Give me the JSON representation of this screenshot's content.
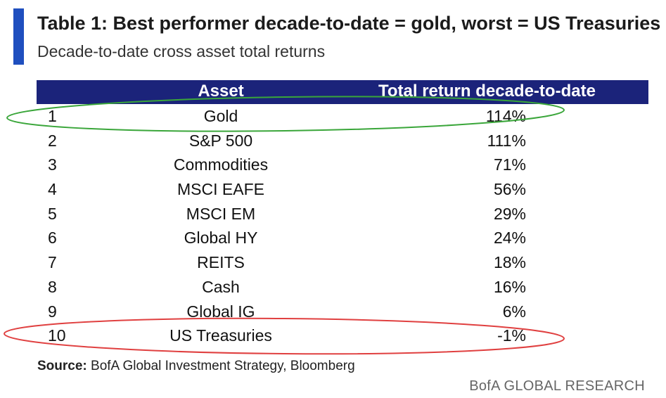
{
  "title": "Table 1: Best performer decade-to-date = gold, worst = US Treasuries",
  "subtitle": "Decade-to-date cross asset total returns",
  "table": {
    "headers": {
      "asset": "Asset",
      "return": "Total return decade-to-date"
    },
    "rows": [
      {
        "rank": "1",
        "asset": "Gold",
        "return": "114%"
      },
      {
        "rank": "2",
        "asset": "S&P 500",
        "return": "111%"
      },
      {
        "rank": "3",
        "asset": "Commodities",
        "return": "71%"
      },
      {
        "rank": "4",
        "asset": "MSCI EAFE",
        "return": "56%"
      },
      {
        "rank": "5",
        "asset": "MSCI EM",
        "return": "29%"
      },
      {
        "rank": "6",
        "asset": "Global HY",
        "return": "24%"
      },
      {
        "rank": "7",
        "asset": "REITS",
        "return": "18%"
      },
      {
        "rank": "8",
        "asset": "Cash",
        "return": "16%"
      },
      {
        "rank": "9",
        "asset": "Global IG",
        "return": "6%"
      },
      {
        "rank": "10",
        "asset": "US Treasuries",
        "return": "-1%"
      }
    ]
  },
  "source": {
    "label": "Source:",
    "text": " BofA Global Investment Strategy, Bloomberg"
  },
  "footer": "BofA GLOBAL RESEARCH",
  "highlights": {
    "best_color": "#3aa63a",
    "worst_color": "#e04040"
  },
  "colors": {
    "accent": "#1f4fbf",
    "header_bg": "#1b237a"
  }
}
